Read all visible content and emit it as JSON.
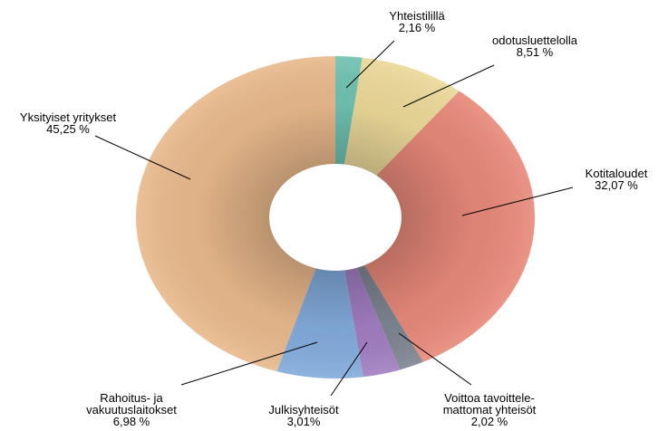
{
  "chart_data": {
    "type": "donut",
    "categories": [
      "Yhteistilillä",
      "odotusluettelolla",
      "Kotitaloudet",
      "Voittoa tavoittele-\nmattomat yhteisöt",
      "Julkisyhteisöt",
      "Rahoitus- ja\nvakuutuslaitokset",
      "Yksityiset yritykset"
    ],
    "values": [
      2.16,
      8.51,
      32.07,
      2.02,
      3.01,
      6.98,
      45.25
    ],
    "value_labels": [
      "2,16 %",
      "8,51 %",
      "32,07 %",
      "2,02 %",
      "3,01%",
      "6,98 %",
      "45,25 %"
    ],
    "colors": [
      "#6fc2b2",
      "#ecd999",
      "#e8897a",
      "#7d8592",
      "#a27ec2",
      "#82abdc",
      "#e9b98c"
    ]
  }
}
